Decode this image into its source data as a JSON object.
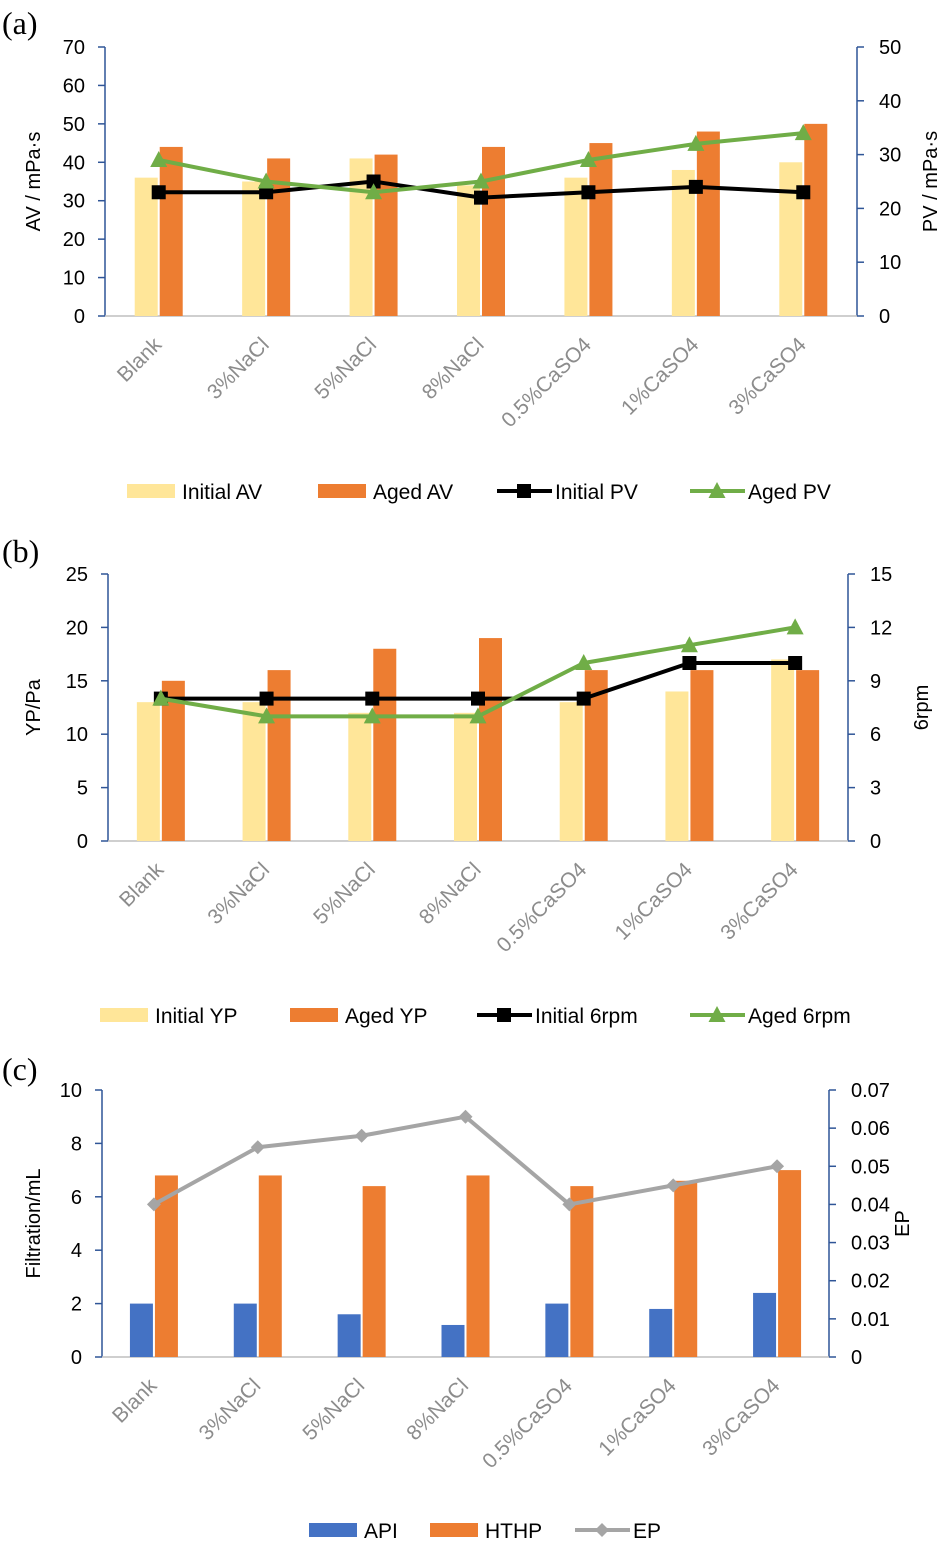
{
  "chart_data": [
    {
      "panel": "(a)",
      "type": "bar+line",
      "categories": [
        "Blank",
        "3%NaCl",
        "5%NaCl",
        "8%NaCl",
        "0.5%CaSO4",
        "1%CaSO4",
        "3%CaSO4"
      ],
      "ylabel": "AV / mPa·s",
      "ylim": [
        0,
        70
      ],
      "yticks": [
        0,
        10,
        20,
        30,
        40,
        50,
        60,
        70
      ],
      "y2label": "PV / mPa·s",
      "y2lim": [
        0,
        50
      ],
      "y2ticks": [
        0,
        10,
        20,
        30,
        40,
        50
      ],
      "bars": [
        {
          "name": "Initial AV",
          "color": "#FFE699",
          "values": [
            36,
            35,
            41,
            34,
            36,
            38,
            40
          ]
        },
        {
          "name": "Aged AV",
          "color": "#ED7D31",
          "values": [
            44,
            41,
            42,
            44,
            45,
            48,
            50
          ]
        }
      ],
      "lines": [
        {
          "name": "Initial PV",
          "color": "#000000",
          "marker": "square",
          "values": [
            23,
            23,
            25,
            22,
            23,
            24,
            23
          ]
        },
        {
          "name": "Aged PV",
          "color": "#70AD47",
          "marker": "triangle",
          "values": [
            29,
            25,
            23,
            25,
            29,
            32,
            34
          ]
        }
      ],
      "legend": "bottom"
    },
    {
      "panel": "(b)",
      "type": "bar+line",
      "categories": [
        "Blank",
        "3%NaCl",
        "5%NaCl",
        "8%NaCl",
        "0.5%CaSO4",
        "1%CaSO4",
        "3%CaSO4"
      ],
      "ylabel": "YP/Pa",
      "ylim": [
        0,
        25
      ],
      "yticks": [
        0,
        5,
        10,
        15,
        20,
        25
      ],
      "y2label": "6rpm",
      "y2lim": [
        0,
        15
      ],
      "y2ticks": [
        0,
        3,
        6,
        9,
        12,
        15
      ],
      "bars": [
        {
          "name": "Initial YP",
          "color": "#FFE699",
          "values": [
            13,
            13,
            12,
            12,
            13,
            14,
            17
          ]
        },
        {
          "name": "Aged YP",
          "color": "#ED7D31",
          "values": [
            15,
            16,
            18,
            19,
            16,
            16,
            16
          ]
        }
      ],
      "lines": [
        {
          "name": "Initial 6rpm",
          "color": "#000000",
          "marker": "square",
          "values": [
            8,
            8,
            8,
            8,
            8,
            10,
            10
          ]
        },
        {
          "name": "Aged 6rpm",
          "color": "#70AD47",
          "marker": "triangle",
          "values": [
            8,
            7,
            7,
            7,
            10,
            11,
            12
          ]
        }
      ],
      "legend": "bottom"
    },
    {
      "panel": "(c)",
      "type": "bar+line",
      "categories": [
        "Blank",
        "3%NaCl",
        "5%NaCl",
        "8%NaCl",
        "0.5%CaSO4",
        "1%CaSO4",
        "3%CaSO4"
      ],
      "ylabel": "Filtration/mL",
      "ylim": [
        0,
        10
      ],
      "yticks": [
        0,
        2,
        4,
        6,
        8,
        10
      ],
      "y2label": "EP",
      "y2lim": [
        0,
        0.07
      ],
      "y2ticks": [
        0,
        0.01,
        0.02,
        0.03,
        0.04,
        0.05,
        0.06,
        0.07
      ],
      "bars": [
        {
          "name": "API",
          "color": "#4472C4",
          "values": [
            2.0,
            2.0,
            1.6,
            1.2,
            2.0,
            1.8,
            2.4
          ]
        },
        {
          "name": "HTHP",
          "color": "#ED7D31",
          "values": [
            6.8,
            6.8,
            6.4,
            6.8,
            6.4,
            6.6,
            7.0
          ]
        }
      ],
      "lines": [
        {
          "name": "EP",
          "color": "#A5A5A5",
          "marker": "diamond",
          "values": [
            0.04,
            0.055,
            0.058,
            0.063,
            0.04,
            0.045,
            0.05
          ]
        }
      ],
      "legend": "bottom"
    }
  ]
}
